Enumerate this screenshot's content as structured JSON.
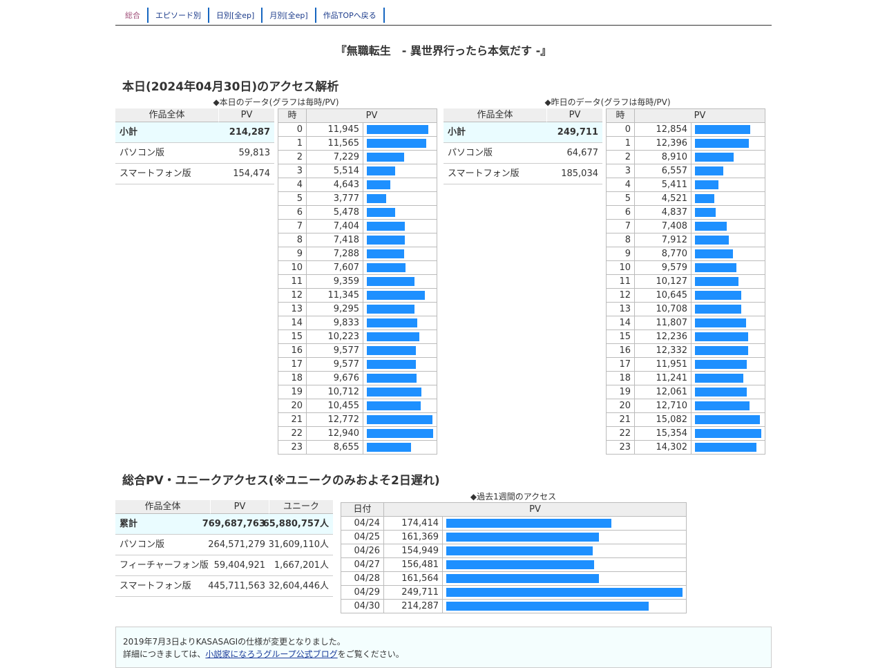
{
  "nav": [
    "総合",
    "エピソード別",
    "日別[全ep]",
    "月別[全ep]",
    "作品TOPへ戻る"
  ],
  "title": "『無職転生　- 異世界行ったら本気だす -』",
  "today": {
    "heading": "本日(2024年04月30日)のアクセス解析",
    "caption": "◆本日のデータ(グラフは毎時/PV)",
    "summary": {
      "headers": [
        "作品全体",
        "PV"
      ],
      "rows": [
        [
          "小計",
          "214,287"
        ],
        [
          "パソコン版",
          "59,813"
        ],
        [
          "スマートフォン版",
          "154,474"
        ]
      ]
    },
    "hourly": {
      "headers": [
        "時",
        "PV"
      ],
      "rows": [
        [
          0,
          "11,945"
        ],
        [
          1,
          "11,565"
        ],
        [
          2,
          "7,229"
        ],
        [
          3,
          "5,514"
        ],
        [
          4,
          "4,643"
        ],
        [
          5,
          "3,777"
        ],
        [
          6,
          "5,478"
        ],
        [
          7,
          "7,404"
        ],
        [
          8,
          "7,418"
        ],
        [
          9,
          "7,288"
        ],
        [
          10,
          "7,607"
        ],
        [
          11,
          "9,359"
        ],
        [
          12,
          "11,345"
        ],
        [
          13,
          "9,295"
        ],
        [
          14,
          "9,833"
        ],
        [
          15,
          "10,223"
        ],
        [
          16,
          "9,577"
        ],
        [
          17,
          "9,577"
        ],
        [
          18,
          "9,676"
        ],
        [
          19,
          "10,712"
        ],
        [
          20,
          "10,455"
        ],
        [
          21,
          "12,772"
        ],
        [
          22,
          "12,940"
        ],
        [
          23,
          "8,655"
        ]
      ]
    }
  },
  "yesterday": {
    "caption": "◆昨日のデータ(グラフは毎時/PV)",
    "summary": {
      "headers": [
        "作品全体",
        "PV"
      ],
      "rows": [
        [
          "小計",
          "249,711"
        ],
        [
          "パソコン版",
          "64,677"
        ],
        [
          "スマートフォン版",
          "185,034"
        ]
      ]
    },
    "hourly": {
      "headers": [
        "時",
        "PV"
      ],
      "rows": [
        [
          0,
          "12,854"
        ],
        [
          1,
          "12,396"
        ],
        [
          2,
          "8,910"
        ],
        [
          3,
          "6,557"
        ],
        [
          4,
          "5,411"
        ],
        [
          5,
          "4,521"
        ],
        [
          6,
          "4,837"
        ],
        [
          7,
          "7,408"
        ],
        [
          8,
          "7,912"
        ],
        [
          9,
          "8,770"
        ],
        [
          10,
          "9,579"
        ],
        [
          11,
          "10,127"
        ],
        [
          12,
          "10,645"
        ],
        [
          13,
          "10,708"
        ],
        [
          14,
          "11,807"
        ],
        [
          15,
          "12,236"
        ],
        [
          16,
          "12,332"
        ],
        [
          17,
          "11,951"
        ],
        [
          18,
          "11,241"
        ],
        [
          19,
          "12,061"
        ],
        [
          20,
          "12,710"
        ],
        [
          21,
          "15,082"
        ],
        [
          22,
          "15,354"
        ],
        [
          23,
          "14,302"
        ]
      ]
    }
  },
  "total": {
    "heading": "総合PV・ユニークアクセス(※ユニークのみおよそ2日遅れ)",
    "summary": {
      "headers": [
        "作品全体",
        "PV",
        "ユニーク"
      ],
      "rows": [
        [
          "累計",
          "769,687,763",
          "65,880,757人"
        ],
        [
          "パソコン版",
          "264,571,279",
          "31,609,110人"
        ],
        [
          "フィーチャーフォン版",
          "59,404,921",
          "1,667,201人"
        ],
        [
          "スマートフォン版",
          "445,711,563",
          "32,604,446人"
        ]
      ]
    },
    "weekly": {
      "caption": "◆過去1週間のアクセス",
      "headers": [
        "日付",
        "PV"
      ],
      "rows": [
        [
          "04/24",
          "174,414"
        ],
        [
          "04/25",
          "161,369"
        ],
        [
          "04/26",
          "154,949"
        ],
        [
          "04/27",
          "156,481"
        ],
        [
          "04/28",
          "161,564"
        ],
        [
          "04/29",
          "249,711"
        ],
        [
          "04/30",
          "214,287"
        ]
      ]
    }
  },
  "notice": {
    "line1": "2019年7月3日よりKASASAGIの仕様が変更となりました。",
    "line2_pre": "詳細につきましては、",
    "link": "小説家になろうグループ公式ブログ",
    "line2_post": "をご覧ください。"
  }
}
